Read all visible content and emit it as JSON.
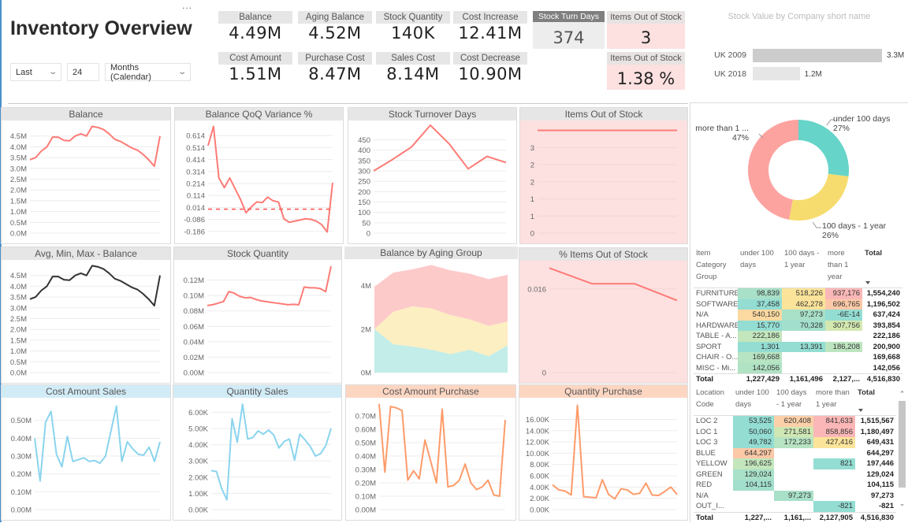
{
  "header": {
    "title": "Inventory Overview",
    "more_label": "..."
  },
  "filters": {
    "period_type": "Last",
    "period_count": "24",
    "period_unit": "Months (Calendar)"
  },
  "kpis": [
    {
      "label": "Balance",
      "value": "4.49M"
    },
    {
      "label": "Aging Balance",
      "value": "4.52M"
    },
    {
      "label": "Stock Quantity",
      "value": "140K"
    },
    {
      "label": "Cost Increase",
      "value": "12.41M"
    },
    {
      "label": "Cost Amount",
      "value": "1.51M"
    },
    {
      "label": "Purchase Cost",
      "value": "8.47M"
    },
    {
      "label": "Sales Cost",
      "value": "8.14M"
    },
    {
      "label": "Cost Decrease",
      "value": "10.90M"
    }
  ],
  "stock_turn": {
    "label": "Stock Turn Days",
    "value": "374"
  },
  "items_out_of_stock": [
    {
      "label": "Items Out of Stock",
      "value": "3"
    },
    {
      "label": "Items Out of Stock",
      "value": "1.38 %"
    }
  ],
  "colors": {
    "accent_red": "#fd7b76",
    "sales": "#8ad4ee",
    "purchase": "#fe9b6a",
    "dark_line": "#333333",
    "alert_bg": "#fde0e0",
    "under_100": "#66d4c9",
    "days_100_1y": "#f6dc6e",
    "more_1y": "#fca3a0"
  },
  "stock_value": {
    "title": "Stock Value by Company short name",
    "type": "bar",
    "bars": [
      {
        "label": "UK 2009",
        "value": 3.3,
        "display": "3.3M",
        "color": "#cccccc"
      },
      {
        "label": "UK 2018",
        "value": 1.2,
        "display": "1.2M",
        "color": "#e6e6e6"
      }
    ]
  },
  "donut": {
    "type": "pie",
    "slices": [
      {
        "label": "under 100 days",
        "pct": 27,
        "display": "27%",
        "color": "#66d4c9"
      },
      {
        "label": "100 days - 1 year",
        "pct": 26,
        "display": "26%",
        "color": "#f6dc6e"
      },
      {
        "label": "more than 1 ...",
        "pct": 47,
        "display": "47%",
        "color": "#fca3a0"
      }
    ]
  },
  "table_category": {
    "headers": [
      "Item Category Group",
      "under 100 days",
      "100 days - 1 year",
      "more than 1 year",
      "Total"
    ],
    "rows": [
      {
        "label": "FURNITURE",
        "cells": [
          {
            "v": "98,839",
            "c": "#a8e0c8"
          },
          {
            "v": "518,226",
            "c": "#fbe49a"
          },
          {
            "v": "937,176",
            "c": "#fbb7b7"
          }
        ],
        "total": "1,554,240"
      },
      {
        "label": "SOFTWARE",
        "cells": [
          {
            "v": "37,458",
            "c": "#93ddd3"
          },
          {
            "v": "462,278",
            "c": "#fbe49a"
          },
          {
            "v": "696,765",
            "c": "#fcc9a8"
          }
        ],
        "total": "1,196,502"
      },
      {
        "label": "N/A",
        "cells": [
          {
            "v": "540,150",
            "c": "#fcd9a0"
          },
          {
            "v": "97,273",
            "c": "#a8e0c8"
          },
          {
            "v": "-6E-14",
            "c": "#93ddd3"
          }
        ],
        "total": "637,424"
      },
      {
        "label": "HARDWARE",
        "cells": [
          {
            "v": "15,770",
            "c": "#93ddd3"
          },
          {
            "v": "70,328",
            "c": "#a2dfcc"
          },
          {
            "v": "307,756",
            "c": "#d3e8b0"
          }
        ],
        "total": "393,854"
      },
      {
        "label": "TABLE - A...",
        "cells": [
          {
            "v": "222,186",
            "c": "#c3e6bd"
          },
          {
            "v": "",
            "c": ""
          },
          {
            "v": "",
            "c": ""
          }
        ],
        "total": "222,186"
      },
      {
        "label": "SPORT",
        "cells": [
          {
            "v": "1,301",
            "c": "#93ddd3"
          },
          {
            "v": "13,391",
            "c": "#93ddd3"
          },
          {
            "v": "186,208",
            "c": "#bde5c0"
          }
        ],
        "total": "200,900"
      },
      {
        "label": "CHAIR - O...",
        "cells": [
          {
            "v": "169,668",
            "c": "#b7e4c2"
          },
          {
            "v": "",
            "c": ""
          },
          {
            "v": "",
            "c": ""
          }
        ],
        "total": "169,668"
      },
      {
        "label": "MISC - Mi...",
        "cells": [
          {
            "v": "142,056",
            "c": "#b0e2c4"
          },
          {
            "v": "",
            "c": ""
          },
          {
            "v": "",
            "c": ""
          }
        ],
        "total": "142,056"
      }
    ],
    "totals": [
      "Total",
      "1,227,429",
      "1,161,496",
      "2,127,...",
      "4,516,830"
    ]
  },
  "table_location": {
    "headers": [
      "Location Code",
      "under 100 days",
      "100 days - 1 year",
      "more than 1 year",
      "Total"
    ],
    "rows": [
      {
        "label": "LOC 2",
        "cells": [
          {
            "v": "53,525",
            "c": "#93ddd3"
          },
          {
            "v": "620,408",
            "c": "#fcd0a8"
          },
          {
            "v": "841,633",
            "c": "#fbb7b7"
          }
        ],
        "total": "1,515,567"
      },
      {
        "label": "LOC 1",
        "cells": [
          {
            "v": "50,060",
            "c": "#93ddd3"
          },
          {
            "v": "271,581",
            "c": "#cfe7b3"
          },
          {
            "v": "858,856",
            "c": "#fbb7b7"
          }
        ],
        "total": "1,180,497"
      },
      {
        "label": "LOC 3",
        "cells": [
          {
            "v": "49,782",
            "c": "#93ddd3"
          },
          {
            "v": "172,233",
            "c": "#b7e4c2"
          },
          {
            "v": "427,416",
            "c": "#fbe49a"
          }
        ],
        "total": "649,431"
      },
      {
        "label": "BLUE",
        "cells": [
          {
            "v": "644,297",
            "c": "#fcc9a8"
          },
          {
            "v": "",
            "c": ""
          },
          {
            "v": "",
            "c": ""
          }
        ],
        "total": "644,297"
      },
      {
        "label": "YELLOW",
        "cells": [
          {
            "v": "196,625",
            "c": "#c3e6bd"
          },
          {
            "v": "",
            "c": ""
          },
          {
            "v": "821",
            "c": "#93ddd3"
          }
        ],
        "total": "197,446"
      },
      {
        "label": "GREEN",
        "cells": [
          {
            "v": "129,024",
            "c": "#a8e0c8"
          },
          {
            "v": "",
            "c": ""
          },
          {
            "v": "",
            "c": ""
          }
        ],
        "total": "129,024"
      },
      {
        "label": "RED",
        "cells": [
          {
            "v": "104,115",
            "c": "#a2dfcc"
          },
          {
            "v": "",
            "c": ""
          },
          {
            "v": "",
            "c": ""
          }
        ],
        "total": "104,115"
      },
      {
        "label": "N/A",
        "cells": [
          {
            "v": "",
            "c": ""
          },
          {
            "v": "97,273",
            "c": "#a8e0c8"
          },
          {
            "v": "",
            "c": ""
          }
        ],
        "total": "97,273"
      },
      {
        "label": "OUT_I...",
        "cells": [
          {
            "v": "",
            "c": ""
          },
          {
            "v": "",
            "c": ""
          },
          {
            "v": "-821",
            "c": "#93ddd3"
          }
        ],
        "total": "-821"
      }
    ],
    "totals": [
      "Total",
      "1,227,...",
      "1,161,...",
      "2,127,905",
      "4,516,830"
    ]
  },
  "chart_data": [
    {
      "title": "Balance",
      "type": "line",
      "ylim": [
        0,
        5
      ],
      "yticks": [
        0,
        0.5,
        1,
        1.5,
        2,
        2.5,
        3,
        3.5,
        4,
        4.5
      ],
      "ytick_labels": [
        "0.0M",
        "0.5M",
        "1.0M",
        "1.5M",
        "2.0M",
        "2.5M",
        "3.0M",
        "3.5M",
        "4.0M",
        "4.5M"
      ],
      "unit": "M",
      "grid": true,
      "series": [
        {
          "color": "#fd7b76",
          "values": [
            3.4,
            3.5,
            3.8,
            4.0,
            4.45,
            4.45,
            4.3,
            4.28,
            4.5,
            4.6,
            4.5,
            4.95,
            4.9,
            4.8,
            4.6,
            4.35,
            4.25,
            4.1,
            3.95,
            3.85,
            3.65,
            3.4,
            3.1,
            4.5
          ]
        }
      ]
    },
    {
      "title": "Balance QoQ Variance %",
      "type": "line",
      "ylim": [
        -0.2,
        0.7
      ],
      "yticks": [
        -0.186,
        -0.086,
        0.014,
        0.114,
        0.214,
        0.314,
        0.414,
        0.514,
        0.614
      ],
      "ytick_labels": [
        "-0.186",
        "-0.086",
        "0.014",
        "0.114",
        "0.214",
        "0.314",
        "0.414",
        "0.514",
        "0.614"
      ],
      "grid": true,
      "reference_line": 0.0,
      "series": [
        {
          "color": "#fd7b76",
          "values": [
            0.53,
            0.69,
            0.26,
            0.18,
            0.26,
            0.17,
            0.08,
            -0.03,
            0.02,
            0.06,
            0.055,
            0.1,
            0.07,
            0.06,
            -0.08,
            -0.11,
            -0.1,
            -0.09,
            -0.08,
            -0.085,
            -0.1,
            -0.13,
            -0.19,
            0.22
          ]
        }
      ]
    },
    {
      "title": "Stock Turnover Days",
      "type": "line",
      "ylim": [
        0,
        520
      ],
      "yticks": [
        0,
        50,
        100,
        150,
        200,
        250,
        300,
        350,
        400,
        450
      ],
      "ytick_labels": [
        "0",
        "50",
        "100",
        "150",
        "200",
        "250",
        "300",
        "350",
        "400",
        "450"
      ],
      "grid": true,
      "series": [
        {
          "color": "#fd7b76",
          "values": [
            300,
            355,
            415,
            520,
            430,
            310,
            370,
            340
          ]
        }
      ]
    },
    {
      "title": "Items Out of Stock",
      "type": "line",
      "ylim": [
        0,
        3.15
      ],
      "yticks": [
        0,
        0.5,
        1,
        1.5,
        2,
        2.5
      ],
      "ytick_labels": [
        "0",
        "1",
        "1",
        "2",
        "2",
        "3"
      ],
      "grid": true,
      "alert": true,
      "series": [
        {
          "color": "#fd7b76",
          "values": [
            3,
            3,
            3,
            3,
            3,
            3,
            3,
            3
          ]
        }
      ]
    },
    {
      "title": "Avg, Min, Max - Balance",
      "type": "line",
      "ylim": [
        0,
        5
      ],
      "yticks": [
        0,
        0.5,
        1,
        1.5,
        2,
        2.5,
        3,
        3.5,
        4,
        4.5
      ],
      "ytick_labels": [
        "0.0M",
        "0.5M",
        "1.0M",
        "1.5M",
        "2.0M",
        "2.5M",
        "3.0M",
        "3.5M",
        "4.0M",
        "4.5M"
      ],
      "grid": true,
      "series": [
        {
          "color": "#333333",
          "values": [
            3.4,
            3.5,
            3.8,
            4.0,
            4.45,
            4.45,
            4.3,
            4.28,
            4.5,
            4.6,
            4.5,
            4.95,
            4.9,
            4.8,
            4.6,
            4.35,
            4.25,
            4.1,
            3.95,
            3.85,
            3.65,
            3.4,
            3.1,
            4.5
          ]
        }
      ]
    },
    {
      "title": "Stock Quantity",
      "type": "line",
      "ylim": [
        0,
        0.14
      ],
      "yticks": [
        0,
        0.02,
        0.04,
        0.06,
        0.08,
        0.1,
        0.12
      ],
      "ytick_labels": [
        "0.00M",
        "0.02M",
        "0.04M",
        "0.06M",
        "0.08M",
        "0.10M",
        "0.12M"
      ],
      "grid": true,
      "series": [
        {
          "color": "#fd7b76",
          "values": [
            0.087,
            0.088,
            0.09,
            0.092,
            0.105,
            0.103,
            0.099,
            0.097,
            0.0975,
            0.095,
            0.093,
            0.092,
            0.091,
            0.09,
            0.089,
            0.088,
            0.0885,
            0.088,
            0.111,
            0.11,
            0.11,
            0.109,
            0.105,
            0.138
          ]
        }
      ]
    },
    {
      "title": "Balance by Aging Group",
      "type": "area",
      "stacked": true,
      "ylim": [
        0,
        5
      ],
      "yticks": [
        0,
        2,
        4
      ],
      "ytick_labels": [
        "0M",
        "2M",
        "4M"
      ],
      "grid": true,
      "series": [
        {
          "color": "#c2ede9",
          "values": [
            2.0,
            1.3,
            1.2,
            1.05,
            0.85,
            1.05,
            0.75,
            1.25
          ]
        },
        {
          "color": "#fcefc2",
          "values": [
            0,
            1.5,
            1.85,
            1.9,
            1.8,
            1.4,
            1.4,
            1.1
          ]
        },
        {
          "color": "#fdcaca",
          "values": [
            1.95,
            1.8,
            1.7,
            2.0,
            2.05,
            2.1,
            2.15,
            2.15
          ]
        }
      ]
    },
    {
      "title": "% Items Out of Stock",
      "type": "line",
      "ylim": [
        0,
        0.0205
      ],
      "yticks": [
        0,
        0.016
      ],
      "ytick_labels": [
        "0",
        "0.016"
      ],
      "grid": true,
      "alert": true,
      "series": [
        {
          "color": "#fd7b76",
          "values": [
            0.02,
            0.017,
            0.017,
            0.0138
          ]
        }
      ]
    },
    {
      "title": "Cost Amount Sales",
      "type": "line",
      "ylim": [
        0,
        0.6
      ],
      "yticks": [
        0,
        0.1,
        0.2,
        0.3,
        0.4,
        0.5
      ],
      "ytick_labels": [
        "0.00M",
        "0.10M",
        "0.20M",
        "0.30M",
        "0.40M",
        "0.50M"
      ],
      "grid": true,
      "group": "sales",
      "series": [
        {
          "color": "#8ad4ee",
          "values": [
            0.4,
            0.16,
            0.49,
            0.55,
            0.31,
            0.24,
            0.41,
            0.27,
            0.28,
            0.29,
            0.27,
            0.275,
            0.26,
            0.3,
            0.44,
            0.58,
            0.27,
            0.38,
            0.34,
            0.31,
            0.305,
            0.35,
            0.27,
            0.38
          ]
        }
      ]
    },
    {
      "title": "Quantity Sales",
      "type": "line",
      "ylim": [
        0,
        6.6
      ],
      "yticks": [
        0,
        1,
        2,
        3,
        4,
        5,
        6
      ],
      "ytick_labels": [
        "0.00K",
        "1.00K",
        "2.00K",
        "3.00K",
        "4.00K",
        "5.00K",
        "6.00K"
      ],
      "grid": true,
      "group": "sales",
      "series": [
        {
          "color": "#8ad4ee",
          "values": [
            2.4,
            2.35,
            1.3,
            0.6,
            5.6,
            4.15,
            6.5,
            4.35,
            4.45,
            4.85,
            4.65,
            4.9,
            4.6,
            3.8,
            4.2,
            4.35,
            3.05,
            4.65,
            4.3,
            3.9,
            3.3,
            3.45,
            3.95,
            5.0
          ]
        }
      ]
    },
    {
      "title": "Cost Amount Purchase",
      "type": "line",
      "ylim": [
        0,
        0.8
      ],
      "yticks": [
        0,
        0.1,
        0.2,
        0.3,
        0.4,
        0.5,
        0.6,
        0.7
      ],
      "ytick_labels": [
        "0.00M",
        "0.10M",
        "0.20M",
        "0.30M",
        "0.40M",
        "0.50M",
        "0.60M",
        "0.70M"
      ],
      "grid": true,
      "group": "purchase",
      "series": [
        {
          "color": "#fe9b6a",
          "values": [
            0.79,
            0.28,
            0.77,
            0.76,
            0.74,
            0.22,
            0.29,
            0.23,
            0.52,
            0.36,
            0.2,
            0.75,
            0.17,
            0.18,
            0.22,
            0.34,
            0.2,
            0.15,
            0.17,
            0.22,
            0.11,
            0.1,
            0.67
          ]
        }
      ]
    },
    {
      "title": "Quantity Purchase",
      "type": "line",
      "ylim": [
        0,
        19
      ],
      "yticks": [
        0,
        2,
        4,
        6,
        8,
        10,
        12,
        14,
        16
      ],
      "ytick_labels": [
        "0.00K",
        "2.00K",
        "4.00K",
        "6.00K",
        "8.00K",
        "10.00K",
        "12.00K",
        "14.00K",
        "16.00K"
      ],
      "grid": true,
      "group": "purchase",
      "series": [
        {
          "color": "#fe9b6a",
          "values": [
            4.4,
            3.5,
            3.3,
            2.6,
            18.5,
            2.3,
            2.2,
            2.1,
            5.3,
            2.7,
            1.9,
            3.7,
            3.5,
            2.7,
            2.9,
            4.7,
            2.6,
            2.5,
            3.2,
            4.0,
            2.7
          ]
        }
      ]
    }
  ]
}
